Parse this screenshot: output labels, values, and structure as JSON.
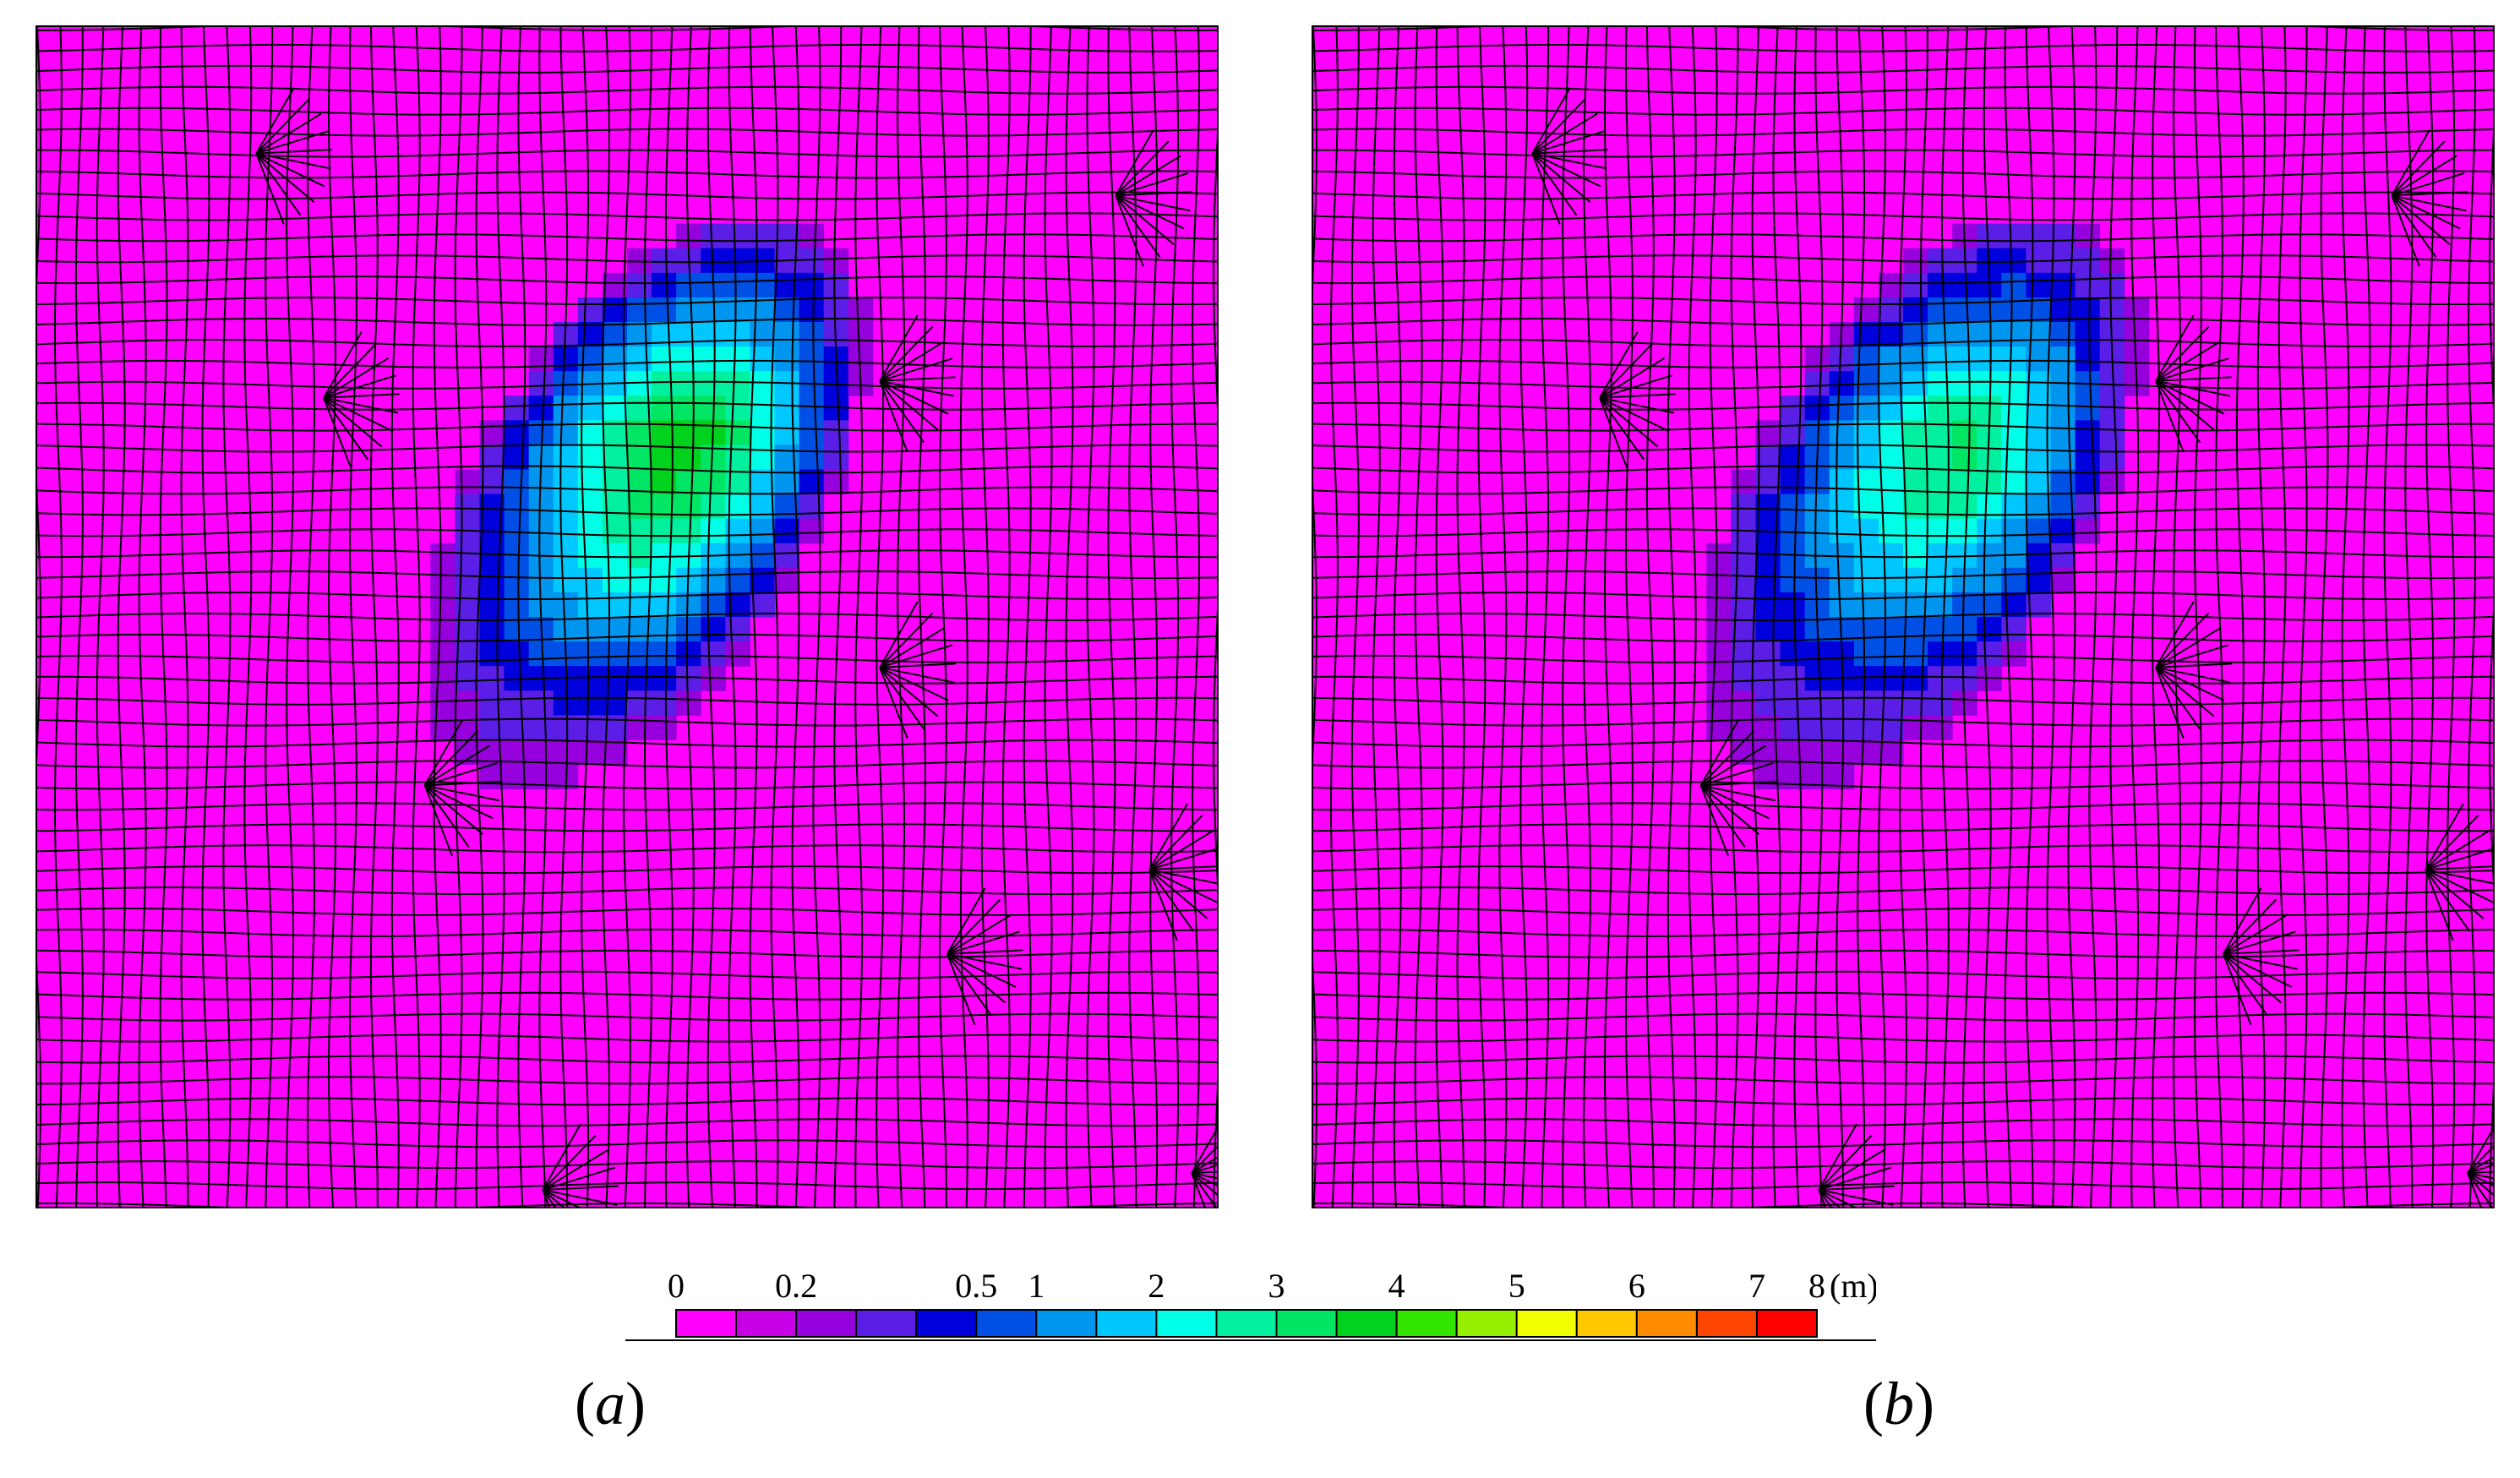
{
  "panels": [
    {
      "id": "a",
      "label": "(a)",
      "letter": "a"
    },
    {
      "id": "b",
      "label": "(b)",
      "letter": "b"
    }
  ],
  "legend": {
    "unit": "(m)",
    "labels": [
      "0",
      "0.2",
      "0.5",
      "1",
      "2",
      "3",
      "4",
      "5",
      "6",
      "7",
      "8"
    ],
    "colors": [
      "#ff00ff",
      "#c800e6",
      "#9600dc",
      "#5a1ee6",
      "#0000dc",
      "#0050e6",
      "#0096f0",
      "#00c8ff",
      "#00ffe6",
      "#00f0a0",
      "#00e664",
      "#00d21e",
      "#32e600",
      "#96f000",
      "#f0ff00",
      "#ffc800",
      "#ff8c00",
      "#ff4600",
      "#ff0000"
    ],
    "colors_note": ""
  },
  "colors": {
    "background": "#ff00ff",
    "mesh": "#000000"
  }
}
